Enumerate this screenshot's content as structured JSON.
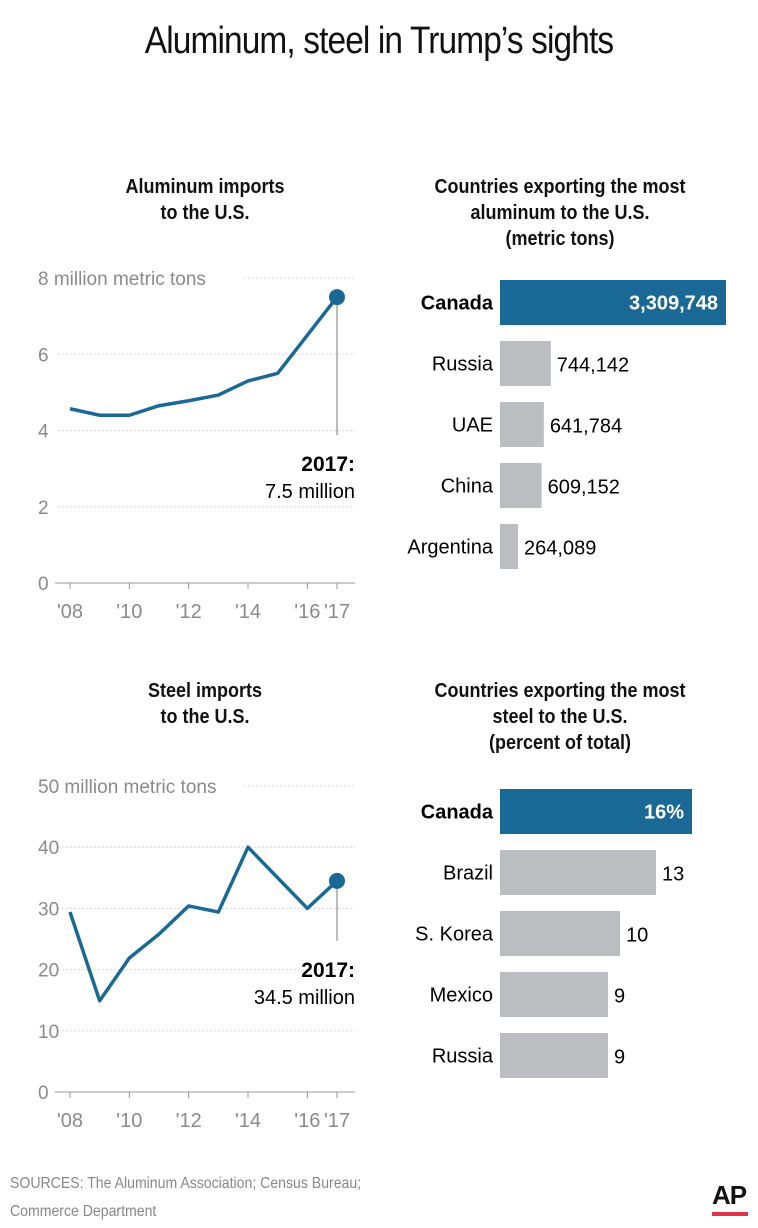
{
  "title": "Aluminum, steel in Trump’s sights",
  "colors": {
    "highlight": "#1a6896",
    "bar_gray": "#bcbdc0",
    "grid": "#cccccc",
    "line": "#1a6896"
  },
  "chart_data": [
    {
      "type": "line",
      "title": "Aluminum imports to the U.S.",
      "title_lines": [
        "Aluminum imports",
        "to the U.S."
      ],
      "ylabel_top": "8 million metric tons",
      "x": [
        2008,
        2009,
        2010,
        2011,
        2012,
        2013,
        2014,
        2015,
        2016,
        2017
      ],
      "y": [
        4.57,
        4.4,
        4.4,
        4.65,
        4.78,
        4.93,
        5.3,
        5.5,
        6.5,
        7.5
      ],
      "ylim": [
        0,
        8
      ],
      "yticks": [
        "0",
        "2",
        "4",
        "6",
        "8 million metric tons"
      ],
      "ytick_values": [
        0,
        2,
        4,
        6,
        8
      ],
      "xtick_labels": [
        "'08",
        "'10",
        "'12",
        "'14",
        "'16",
        "'17"
      ],
      "xtick_values": [
        2008,
        2010,
        2012,
        2014,
        2016,
        2017
      ],
      "annotation": {
        "year": "2017:",
        "value": "7.5 million"
      },
      "grid": "dotted horizontal"
    },
    {
      "type": "bar",
      "orientation": "horizontal",
      "title_lines": [
        "Countries exporting the most",
        "aluminum to the U.S.",
        "(metric tons)"
      ],
      "categories": [
        "Canada",
        "Russia",
        "UAE",
        "China",
        "Argentina"
      ],
      "values": [
        3309748,
        744142,
        641784,
        609152,
        264089
      ],
      "labels": [
        "3,309,748",
        "744,142",
        "641,784",
        "609,152",
        "264,089"
      ],
      "highlight": "Canada"
    },
    {
      "type": "line",
      "title_lines": [
        "Steel imports",
        "to the U.S."
      ],
      "ylabel_top": "50 million metric tons",
      "x": [
        2008,
        2009,
        2010,
        2011,
        2012,
        2013,
        2014,
        2015,
        2016,
        2017
      ],
      "y": [
        29.4,
        14.9,
        21.9,
        25.8,
        30.4,
        29.4,
        40,
        35,
        30,
        34.5
      ],
      "ylim": [
        0,
        50
      ],
      "yticks": [
        "0",
        "10",
        "20",
        "30",
        "40",
        "50 million metric tons"
      ],
      "ytick_values": [
        0,
        10,
        20,
        30,
        40,
        50
      ],
      "xtick_labels": [
        "'08",
        "'10",
        "'12",
        "'14",
        "'16",
        "'17"
      ],
      "xtick_values": [
        2008,
        2010,
        2012,
        2014,
        2016,
        2017
      ],
      "annotation": {
        "year": "2017:",
        "value": "34.5 million"
      },
      "grid": "dotted horizontal"
    },
    {
      "type": "bar",
      "orientation": "horizontal",
      "title_lines": [
        "Countries exporting the most",
        "steel to the U.S.",
        "(percent of total)"
      ],
      "categories": [
        "Canada",
        "Brazil",
        "S. Korea",
        "Mexico",
        "Russia"
      ],
      "values": [
        16,
        13,
        10,
        9,
        9
      ],
      "labels": [
        "16%",
        "13",
        "10",
        "9",
        "9"
      ],
      "highlight": "Canada"
    }
  ],
  "source_lines": [
    "SOURCES: The Aluminum Association; Census Bureau;",
    "Commerce Department"
  ],
  "logo": "AP"
}
